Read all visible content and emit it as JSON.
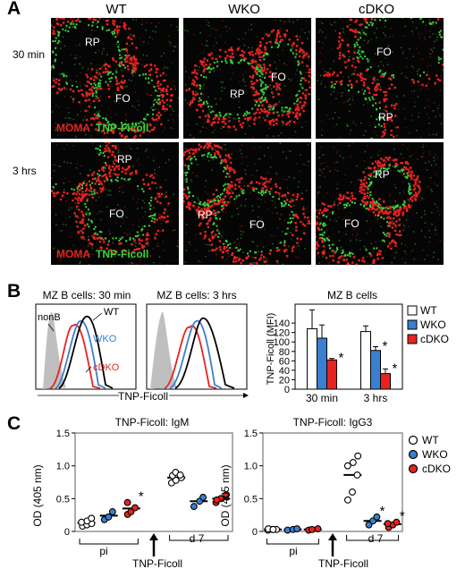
{
  "panelA": {
    "letter": "A",
    "columns": [
      "WT",
      "WKO",
      "cDKO"
    ],
    "rows": [
      "30 min",
      "3 hrs"
    ],
    "regions": {
      "rp": "RP",
      "fo": "FO"
    },
    "stain": {
      "moma": "MOMA",
      "tnp": "TNP-Ficoll"
    },
    "colors": {
      "moma": "#e8231f",
      "tnp": "#3bd23b",
      "background": "#050505"
    }
  },
  "panelB": {
    "letter": "B",
    "histogram_titles": [
      "MZ B cells: 30 min",
      "MZ B cells: 3 hrs"
    ],
    "histogram_labels": {
      "nonb": "nonB",
      "wt": "WT",
      "wko": "WKO",
      "cdko": "cDKO"
    },
    "x_label": "TNP-Ficoll",
    "legend": [
      "WT",
      "WKO",
      "cDKO"
    ],
    "colors": {
      "wt": "#ffffff",
      "wko": "#3a7fd0",
      "cdko": "#e8231f",
      "nonb": "#bfbfbf"
    }
  },
  "panelC": {
    "letter": "C",
    "legend": [
      "WT",
      "WKO",
      "cDKO"
    ],
    "arrow_label": "TNP-Ficoll"
  },
  "chart_data": [
    {
      "type": "bar",
      "title": "MZ B cells",
      "ylabel": "TNP-Ficoll (MFI)",
      "categories": [
        "30 min",
        "3 hrs"
      ],
      "ylim": [
        0,
        180
      ],
      "yticks": [
        0,
        20,
        40,
        60,
        80,
        100,
        120,
        140
      ],
      "series": [
        {
          "name": "WT",
          "color": "#ffffff",
          "values": [
            128,
            122
          ],
          "errors": [
            40,
            12
          ]
        },
        {
          "name": "WKO",
          "color": "#3a7fd0",
          "values": [
            108,
            82
          ],
          "errors": [
            28,
            8
          ]
        },
        {
          "name": "cDKO",
          "color": "#e8231f",
          "values": [
            62,
            33
          ],
          "errors": [
            3,
            10
          ]
        }
      ],
      "significance": [
        "*",
        "*",
        "*"
      ]
    },
    {
      "type": "scatter",
      "title": "TNP-Ficoll: IgM",
      "ylabel": "OD (405 nm)",
      "ylim": [
        0,
        1.5
      ],
      "yticks": [
        0,
        0.5,
        1.0,
        1.5
      ],
      "ytick_labels": [
        "0",
        "0.5",
        "1.0",
        "1.5"
      ],
      "group_labels": [
        "pi",
        "d 7"
      ],
      "groups": [
        {
          "timepoint": "pi",
          "genotype": "WT",
          "color": "#ffffff",
          "points": [
            0.08,
            0.1,
            0.12,
            0.14,
            0.16,
            0.2
          ],
          "mean": 0.13
        },
        {
          "timepoint": "pi",
          "genotype": "WKO",
          "color": "#3a7fd0",
          "points": [
            0.18,
            0.22,
            0.3
          ],
          "mean": 0.24
        },
        {
          "timepoint": "pi",
          "genotype": "cDKO",
          "color": "#e8231f",
          "points": [
            0.26,
            0.3,
            0.36,
            0.44
          ],
          "mean": 0.35,
          "sig": "*"
        },
        {
          "timepoint": "d 7",
          "genotype": "WT",
          "color": "#ffffff",
          "points": [
            0.74,
            0.78,
            0.82,
            0.85,
            0.9,
            0.86
          ],
          "mean": 0.82
        },
        {
          "timepoint": "d 7",
          "genotype": "WKO",
          "color": "#3a7fd0",
          "points": [
            0.38,
            0.46,
            0.52
          ],
          "mean": 0.46
        },
        {
          "timepoint": "d 7",
          "genotype": "cDKO",
          "color": "#e8231f",
          "points": [
            0.44,
            0.5,
            0.56,
            0.48
          ],
          "mean": 0.5
        }
      ]
    },
    {
      "type": "scatter",
      "title": "TNP-Ficoll: IgG3",
      "ylabel": "OD (405 nm)",
      "ylim": [
        0,
        1.5
      ],
      "yticks": [
        0,
        0.5,
        1.0,
        1.5
      ],
      "ytick_labels": [
        "0",
        "0.5",
        "1.0",
        "1.5"
      ],
      "group_labels": [
        "pi",
        "d 7"
      ],
      "groups": [
        {
          "timepoint": "pi",
          "genotype": "WT",
          "color": "#ffffff",
          "points": [
            0.02,
            0.03,
            0.03,
            0.04,
            0.03
          ],
          "mean": 0.03
        },
        {
          "timepoint": "pi",
          "genotype": "WKO",
          "color": "#3a7fd0",
          "points": [
            0.02,
            0.03,
            0.04
          ],
          "mean": 0.03
        },
        {
          "timepoint": "pi",
          "genotype": "cDKO",
          "color": "#e8231f",
          "points": [
            0.02,
            0.03,
            0.04
          ],
          "mean": 0.03
        },
        {
          "timepoint": "d 7",
          "genotype": "WT",
          "color": "#ffffff",
          "points": [
            0.48,
            0.6,
            0.86,
            1.0,
            1.05,
            1.15
          ],
          "mean": 0.86
        },
        {
          "timepoint": "d 7",
          "genotype": "WKO",
          "color": "#3a7fd0",
          "points": [
            0.1,
            0.16,
            0.22
          ],
          "mean": 0.16,
          "sig": "*"
        },
        {
          "timepoint": "d 7",
          "genotype": "cDKO",
          "color": "#e8231f",
          "points": [
            0.06,
            0.1,
            0.14,
            0.12
          ],
          "mean": 0.11,
          "sig": "*"
        }
      ]
    }
  ]
}
